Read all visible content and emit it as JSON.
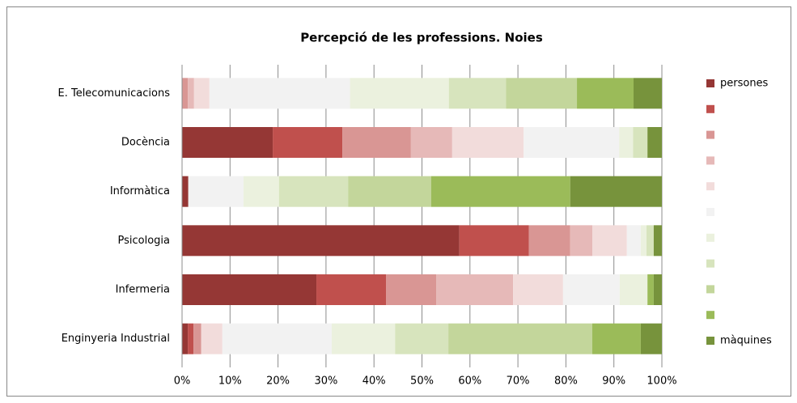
{
  "chart_data": {
    "type": "stacked_bar_horizontal",
    "title": "Percepció de les professions. Noies",
    "categories": [
      "E. Telecomunicacions",
      "Docència",
      "Informàtica",
      "Psicologia",
      "Infermeria",
      "Enginyeria Industrial"
    ],
    "series": [
      {
        "name": "persones",
        "color": "#953735",
        "values": [
          0,
          18.9,
          1.3,
          57.8,
          28.0,
          1.2
        ]
      },
      {
        "color": "#c0504d",
        "values": [
          0,
          14.5,
          0,
          14.5,
          14.5,
          1.2
        ]
      },
      {
        "color": "#d99694",
        "values": [
          1.2,
          14.3,
          0,
          8.6,
          10.5,
          1.6
        ]
      },
      {
        "color": "#e6b9b8",
        "values": [
          1.3,
          8.6,
          0,
          4.6,
          16.0,
          0
        ]
      },
      {
        "color": "#f2dcdb",
        "values": [
          3.2,
          14.9,
          0,
          7.2,
          10.4,
          4.4
        ]
      },
      {
        "color": "#f2f2f2",
        "values": [
          29.3,
          19.9,
          11.5,
          2.9,
          11.8,
          22.8
        ]
      },
      {
        "color": "#ebf1de",
        "values": [
          20.6,
          2.9,
          7.4,
          1.2,
          5.8,
          13.2
        ]
      },
      {
        "color": "#d7e4bd",
        "values": [
          11.9,
          3.0,
          14.4,
          1.5,
          0,
          11.1
        ]
      },
      {
        "color": "#c3d69b",
        "values": [
          14.8,
          0,
          17.3,
          0,
          0,
          30.0
        ]
      },
      {
        "color": "#9bbb59",
        "values": [
          11.8,
          0,
          29.0,
          0,
          1.3,
          10.1
        ]
      },
      {
        "name": "màquines",
        "color": "#77933c",
        "values": [
          5.9,
          3.0,
          19.1,
          1.7,
          1.7,
          4.4
        ]
      }
    ],
    "xlim": [
      0,
      100
    ],
    "xticks": [
      {
        "value": 0,
        "label": "0%"
      },
      {
        "value": 10,
        "label": "10%"
      },
      {
        "value": 20,
        "label": "20%"
      },
      {
        "value": 30,
        "label": "30%"
      },
      {
        "value": 40,
        "label": "40%"
      },
      {
        "value": 50,
        "label": "50%"
      },
      {
        "value": 60,
        "label": "60%"
      },
      {
        "value": 70,
        "label": "70%"
      },
      {
        "value": 80,
        "label": "80%"
      },
      {
        "value": 90,
        "label": "90%"
      },
      {
        "value": 100,
        "label": "100%"
      }
    ],
    "grid": true,
    "legend": "right"
  }
}
